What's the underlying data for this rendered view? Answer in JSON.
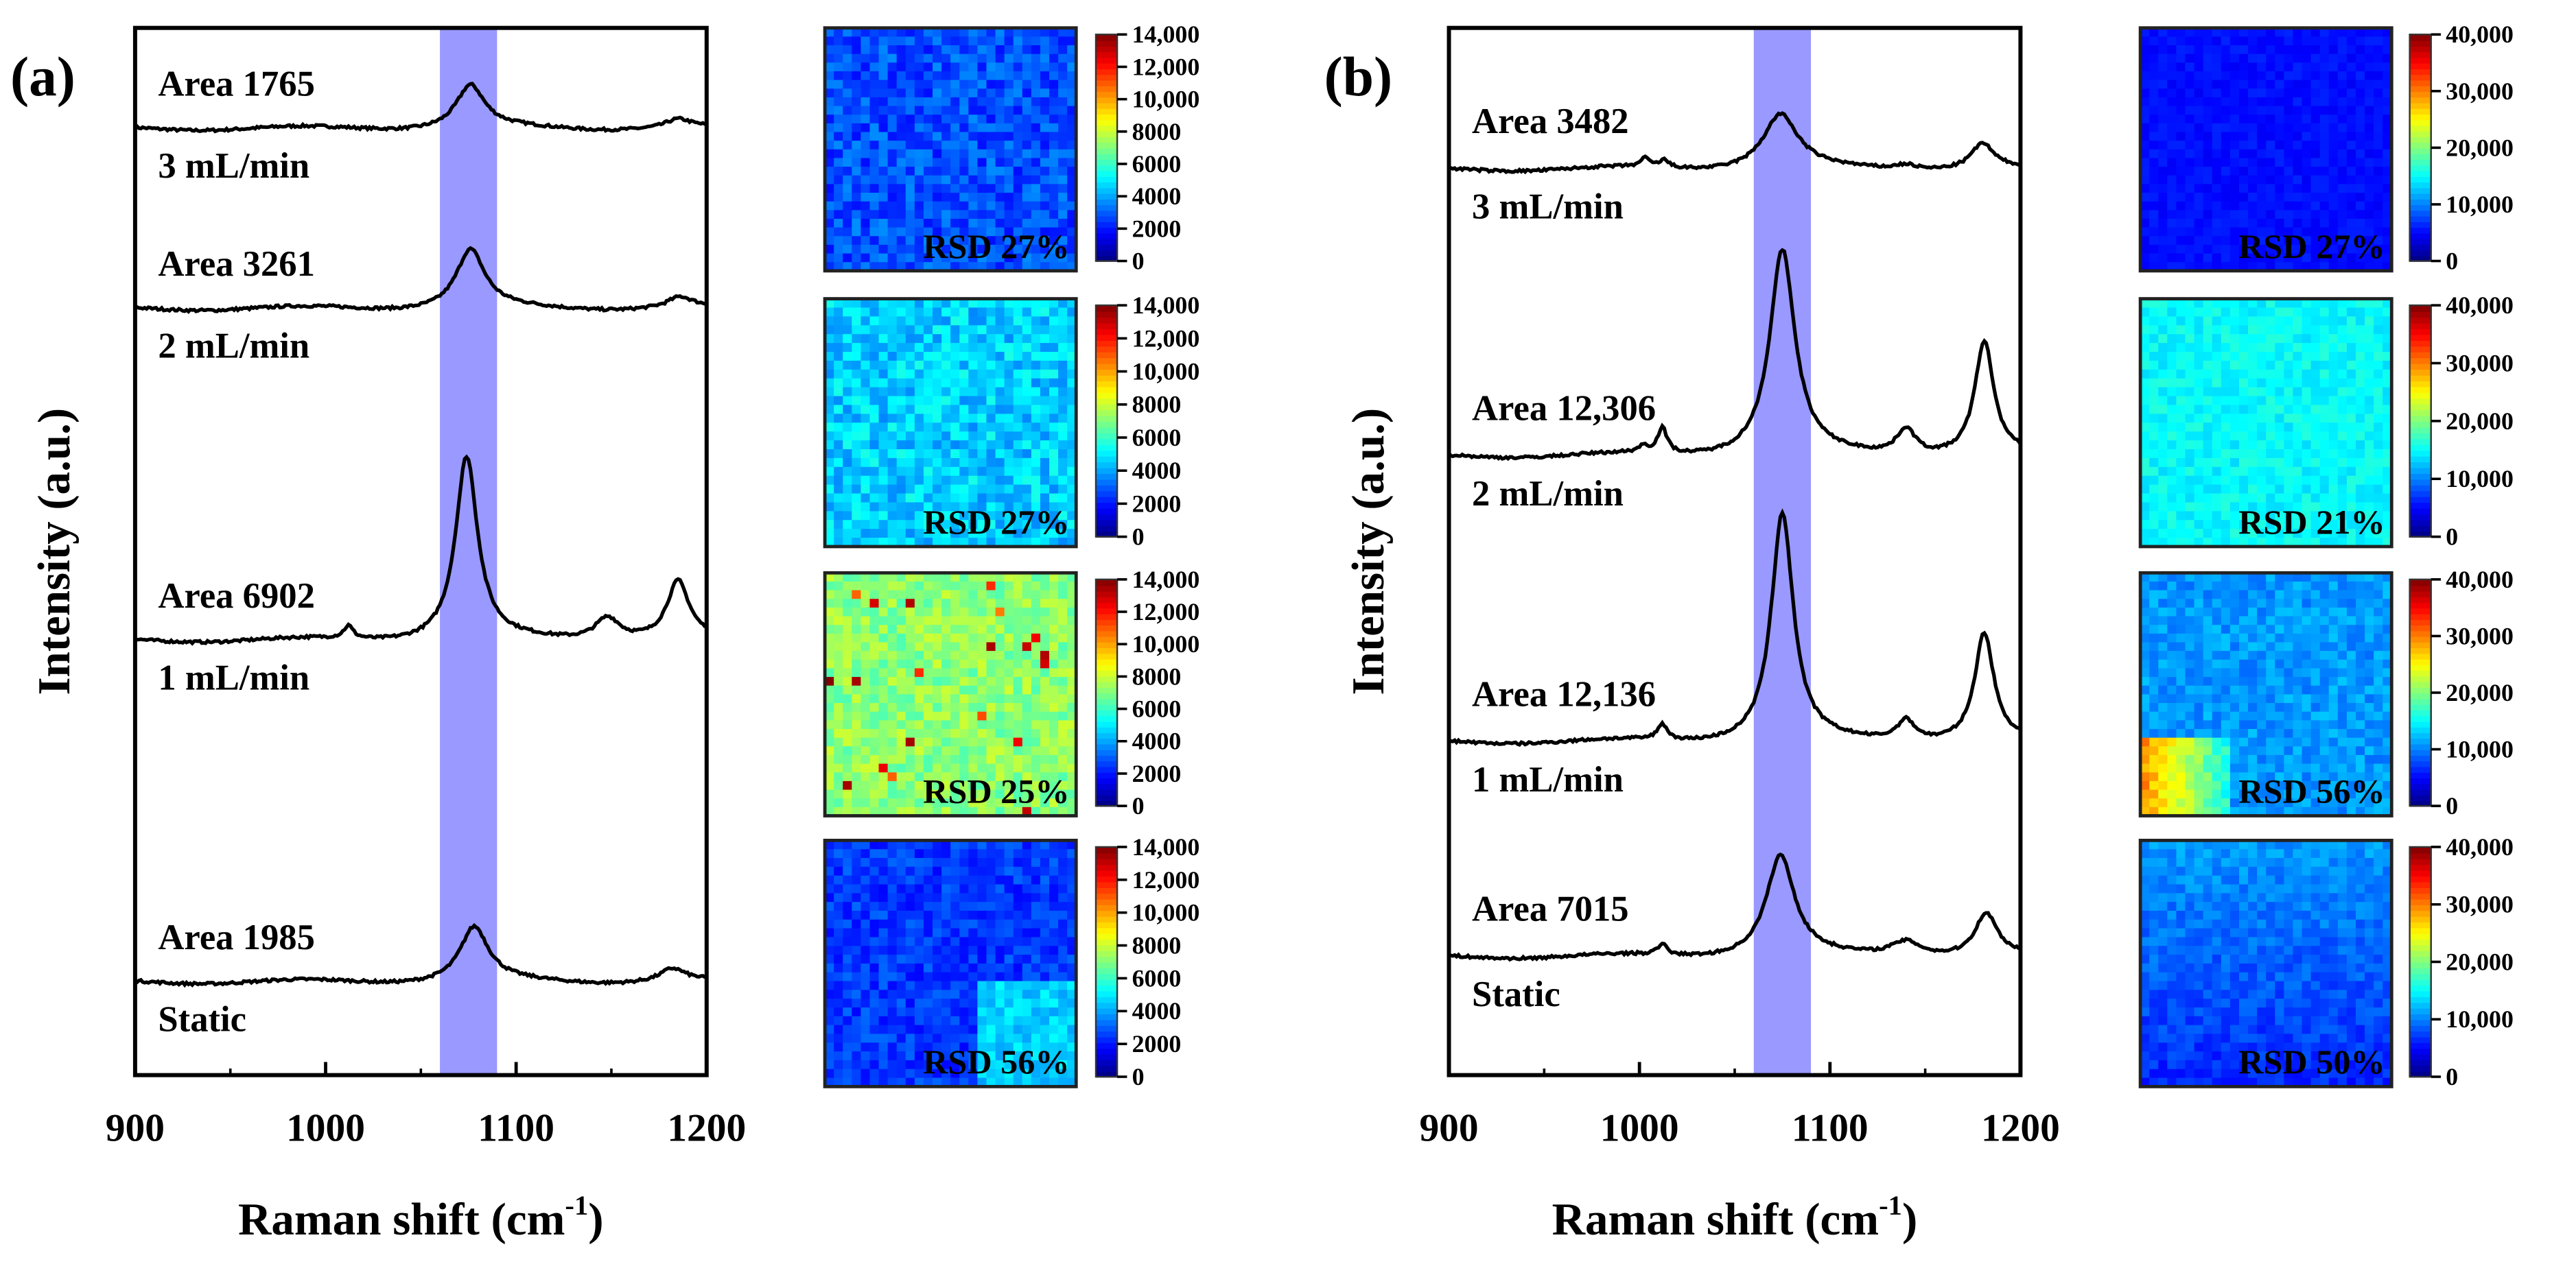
{
  "chart_data": [
    {
      "type": "line",
      "panel_label": "(a)",
      "xlabel": "Raman shift (cm",
      "xlabel_sup": "-1",
      "xlabel_end": ")",
      "ylabel": "Intensity (a.u.)",
      "xlim": [
        900,
        1200
      ],
      "ylim": [
        0,
        100
      ],
      "xticks": [
        "900",
        "1000",
        "1100",
        "1200"
      ],
      "highlight_band": [
        1060,
        1090
      ],
      "highlight_color": "#9999ff",
      "series": [
        {
          "name": "3 mL/min",
          "area_label": "Area 1765",
          "baseline": 90.4,
          "peaks": [
            [
              1076,
              4.1,
              9
            ],
            [
              1185,
              0.8,
              8
            ]
          ]
        },
        {
          "name": "2 mL/min",
          "area_label": "Area 3261",
          "baseline": 73.2,
          "peaks": [
            [
              1076,
              5.6,
              9
            ],
            [
              1186,
              1.0,
              8
            ]
          ]
        },
        {
          "name": "1 mL/min",
          "area_label": "Area 6902",
          "baseline": 41.5,
          "peaks": [
            [
              1074,
              17.5,
              7
            ],
            [
              1185,
              5.5,
              7
            ],
            [
              1148,
              2.2,
              8
            ],
            [
              1012,
              1.2,
              3
            ]
          ]
        },
        {
          "name": "Static",
          "area_label": "Area 1985",
          "baseline": 8.9,
          "peaks": [
            [
              1078,
              5.2,
              9
            ],
            [
              1182,
              1.2,
              8
            ]
          ]
        }
      ],
      "maps": [
        {
          "rsd": "RSD 27%",
          "mean": 2800,
          "spread": 900,
          "pattern": "uniform"
        },
        {
          "rsd": "RSD 27%",
          "mean": 4600,
          "spread": 1000,
          "pattern": "uniform"
        },
        {
          "rsd": "RSD 25%",
          "mean": 7200,
          "spread": 900,
          "pattern": "hotspots"
        },
        {
          "rsd": "RSD 56%",
          "mean": 2500,
          "spread": 700,
          "pattern": "corner-br"
        }
      ],
      "colorbar": {
        "max": 14000,
        "ticks": [
          "0",
          "2000",
          "4000",
          "6000",
          "8000",
          "10,000",
          "12,000",
          "14,000"
        ]
      }
    },
    {
      "type": "line",
      "panel_label": "(b)",
      "xlabel": "Raman shift (cm",
      "xlabel_sup": "-1",
      "xlabel_end": ")",
      "ylabel": "Intensity (a.u.)",
      "xlim": [
        900,
        1200
      ],
      "ylim": [
        0,
        100
      ],
      "xticks": [
        "900",
        "1000",
        "1100",
        "1200"
      ],
      "highlight_band": [
        1060,
        1090
      ],
      "highlight_color": "#9999ff",
      "series": [
        {
          "name": "3 mL/min",
          "area_label": "Area 3482",
          "baseline": 86.5,
          "peaks": [
            [
              1074,
              5.2,
              11
            ],
            [
              1180,
              2.4,
              7
            ],
            [
              1140,
              0.5,
              7
            ],
            [
              1003,
              0.8,
              3
            ],
            [
              1013,
              0.7,
              3
            ]
          ]
        },
        {
          "name": "2 mL/min",
          "area_label": "Area 12,306",
          "baseline": 59.1,
          "peaks": [
            [
              1075,
              19.6,
              8
            ],
            [
              1181,
              10.8,
              6
            ],
            [
              1140,
              2.5,
              6
            ],
            [
              1012,
              2.4,
              3
            ],
            [
              1002,
              0.6,
              3
            ]
          ]
        },
        {
          "name": "1 mL/min",
          "area_label": "Area 12,136",
          "baseline": 31.8,
          "peaks": [
            [
              1075,
              21.8,
              7
            ],
            [
              1181,
              10.3,
              6
            ],
            [
              1140,
              2.0,
              6
            ],
            [
              1012,
              1.5,
              3
            ]
          ]
        },
        {
          "name": "Static",
          "area_label": "Area 7015",
          "baseline": 11.3,
          "peaks": [
            [
              1074,
              9.6,
              9
            ],
            [
              1182,
              4.0,
              7
            ],
            [
              1140,
              1.5,
              10
            ],
            [
              1012,
              1.0,
              3
            ]
          ]
        }
      ],
      "maps": [
        {
          "rsd": "RSD 27%",
          "mean": 5500,
          "spread": 900,
          "pattern": "uniform"
        },
        {
          "rsd": "RSD 21%",
          "mean": 15000,
          "spread": 1500,
          "pattern": "uniform"
        },
        {
          "rsd": "RSD 56%",
          "mean": 11000,
          "spread": 1800,
          "pattern": "corner-bl"
        },
        {
          "rsd": "RSD 50%",
          "mean": 11000,
          "spread": 1500,
          "pattern": "gradient-down"
        }
      ],
      "colorbar": {
        "max": 40000,
        "ticks": [
          "0",
          "10,000",
          "20,000",
          "30,000",
          "40,000"
        ]
      }
    }
  ]
}
